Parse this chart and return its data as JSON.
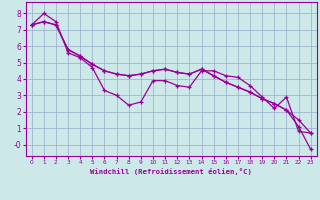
{
  "xlabel": "Windchill (Refroidissement éolien,°C)",
  "bg_color": "#cce8e8",
  "line_color": "#990099",
  "grid_color": "#99aacc",
  "xlim": [
    -0.5,
    23.5
  ],
  "ylim": [
    -0.7,
    8.7
  ],
  "xticks": [
    0,
    1,
    2,
    3,
    4,
    5,
    6,
    7,
    8,
    9,
    10,
    11,
    12,
    13,
    14,
    15,
    16,
    17,
    18,
    19,
    20,
    21,
    22,
    23
  ],
  "yticks": [
    0,
    1,
    2,
    3,
    4,
    5,
    6,
    7,
    8
  ],
  "line1_x": [
    0,
    1,
    2,
    3,
    4,
    5,
    6,
    7,
    8,
    9,
    10,
    11,
    12,
    13,
    14,
    15,
    16,
    17,
    18,
    19,
    20,
    21,
    22,
    23
  ],
  "line1_y": [
    7.3,
    8.0,
    7.5,
    5.6,
    5.3,
    4.7,
    3.3,
    3.0,
    2.4,
    2.6,
    3.9,
    3.9,
    3.6,
    3.5,
    4.5,
    4.5,
    4.2,
    4.1,
    3.6,
    2.9,
    2.2,
    2.9,
    0.8,
    0.7
  ],
  "line2_x": [
    0,
    1,
    2,
    3,
    4,
    5,
    6,
    7,
    8,
    9,
    10,
    11,
    12,
    13,
    14,
    15,
    16,
    17,
    18,
    19,
    20,
    21,
    22,
    23
  ],
  "line2_y": [
    7.3,
    7.5,
    7.3,
    5.8,
    5.4,
    4.9,
    4.5,
    4.3,
    4.2,
    4.3,
    4.5,
    4.6,
    4.4,
    4.3,
    4.6,
    4.2,
    3.8,
    3.5,
    3.2,
    2.8,
    2.5,
    2.1,
    1.5,
    0.7
  ],
  "line3_x": [
    0,
    1,
    2,
    3,
    4,
    5,
    6,
    7,
    8,
    9,
    10,
    11,
    12,
    13,
    14,
    15,
    16,
    17,
    18,
    19,
    20,
    21,
    22,
    23
  ],
  "line3_y": [
    7.3,
    7.5,
    7.3,
    5.8,
    5.4,
    4.9,
    4.5,
    4.3,
    4.2,
    4.3,
    4.5,
    4.6,
    4.4,
    4.3,
    4.6,
    4.2,
    3.8,
    3.5,
    3.2,
    2.8,
    2.5,
    2.1,
    1.1,
    -0.3
  ]
}
